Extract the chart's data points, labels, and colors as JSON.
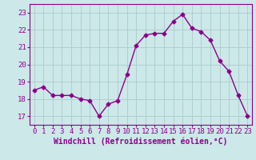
{
  "x": [
    0,
    1,
    2,
    3,
    4,
    5,
    6,
    7,
    8,
    9,
    10,
    11,
    12,
    13,
    14,
    15,
    16,
    17,
    18,
    19,
    20,
    21,
    22,
    23
  ],
  "y": [
    18.5,
    18.7,
    18.2,
    18.2,
    18.2,
    18.0,
    17.9,
    17.0,
    17.7,
    17.9,
    19.4,
    21.1,
    21.7,
    21.8,
    21.8,
    22.5,
    22.9,
    22.1,
    21.9,
    21.4,
    20.2,
    19.6,
    18.2,
    17.0
  ],
  "line_color": "#8B008B",
  "marker": "D",
  "marker_size": 2.5,
  "line_width": 1.0,
  "bg_color": "#cce8e8",
  "grid_color": "#aacccc",
  "xlabel": "Windchill (Refroidissement éolien,°C)",
  "xlabel_color": "#8B008B",
  "tick_color": "#8B008B",
  "ylim": [
    16.5,
    23.5
  ],
  "xlim": [
    -0.5,
    23.5
  ],
  "yticks": [
    17,
    18,
    19,
    20,
    21,
    22,
    23
  ],
  "xticks": [
    0,
    1,
    2,
    3,
    4,
    5,
    6,
    7,
    8,
    9,
    10,
    11,
    12,
    13,
    14,
    15,
    16,
    17,
    18,
    19,
    20,
    21,
    22,
    23
  ],
  "tick_fontsize": 6.5,
  "xlabel_fontsize": 7.0
}
